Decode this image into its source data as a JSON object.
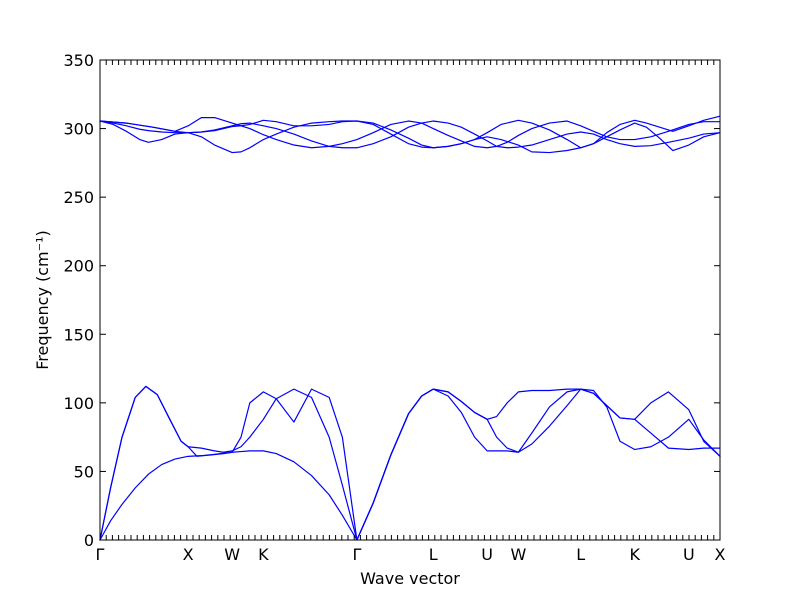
{
  "chart_data": {
    "type": "line",
    "xlabel": "Wave vector",
    "ylabel": "Frequency (cm⁻¹)",
    "ylim": [
      0,
      350
    ],
    "y_ticks": [
      0,
      50,
      100,
      150,
      200,
      250,
      300,
      350
    ],
    "x_ticks": [
      {
        "label": "Γ",
        "x": 0.0
      },
      {
        "label": "X",
        "x": 1.0
      },
      {
        "label": "W",
        "x": 1.5
      },
      {
        "label": "K",
        "x": 1.854
      },
      {
        "label": "Γ",
        "x": 2.915
      },
      {
        "label": "L",
        "x": 3.781
      },
      {
        "label": "U",
        "x": 4.393
      },
      {
        "label": "W",
        "x": 4.747
      },
      {
        "label": "L",
        "x": 5.454
      },
      {
        "label": "K",
        "x": 6.067
      },
      {
        "label": "U",
        "x": 6.681
      },
      {
        "label": "X",
        "x": 7.035
      }
    ],
    "xlim": [
      0,
      7.035
    ],
    "line_color": "#0000ff",
    "grid": false,
    "series": [
      {
        "x": [
          0,
          0.12,
          0.25,
          0.4,
          0.55,
          0.7,
          0.85,
          1.0,
          1.15,
          1.3,
          1.5,
          1.6,
          1.7,
          1.854,
          2.0,
          2.2,
          2.4,
          2.6,
          2.75,
          2.915,
          3.1,
          3.3,
          3.5,
          3.65,
          3.781,
          3.95,
          4.1,
          4.25,
          4.393,
          4.5,
          4.62,
          4.747,
          4.9,
          5.1,
          5.3,
          5.454,
          5.6,
          5.75,
          5.9,
          6.067,
          6.25,
          6.45,
          6.681,
          6.85,
          7.035
        ],
        "values": [
          0,
          14,
          26,
          38,
          48,
          55,
          59,
          61,
          61.5,
          62.5,
          64,
          64.5,
          65,
          65,
          63,
          57,
          47,
          33,
          18,
          0,
          27,
          62,
          92,
          105,
          110,
          108,
          101,
          93,
          88,
          75,
          67,
          64,
          78,
          97,
          108,
          110,
          107,
          98,
          89,
          88,
          78,
          67,
          66,
          67,
          67
        ]
      },
      {
        "x": [
          0,
          0.12,
          0.25,
          0.4,
          0.52,
          0.65,
          0.8,
          0.92,
          1.0,
          1.15,
          1.3,
          1.4,
          1.5,
          1.6,
          1.7,
          1.854,
          2.0,
          2.2,
          2.4,
          2.6,
          2.75,
          2.915,
          3.1,
          3.3,
          3.5,
          3.65,
          3.781,
          3.95,
          4.1,
          4.25,
          4.393,
          4.5,
          4.62,
          4.747,
          4.9,
          5.1,
          5.3,
          5.454,
          5.6,
          5.75,
          5.9,
          6.067,
          6.25,
          6.45,
          6.681,
          6.85,
          7.035
        ],
        "values": [
          0,
          38,
          75,
          104,
          112,
          106,
          87,
          72,
          68,
          67,
          65,
          64,
          65,
          68,
          75,
          88,
          103,
          110,
          104,
          75,
          40,
          0,
          27,
          62,
          92,
          105,
          110,
          105,
          93,
          75,
          65,
          65,
          65,
          64,
          70,
          83,
          98,
          110,
          109,
          97,
          72,
          66,
          68,
          75,
          88,
          73,
          61
        ]
      },
      {
        "x": [
          0,
          0.12,
          0.25,
          0.4,
          0.52,
          0.65,
          0.8,
          0.92,
          1.0,
          1.1,
          1.25,
          1.4,
          1.5,
          1.6,
          1.7,
          1.854,
          2.0,
          2.2,
          2.4,
          2.6,
          2.75,
          2.915,
          3.1,
          3.3,
          3.5,
          3.65,
          3.781,
          3.95,
          4.1,
          4.25,
          4.393,
          4.5,
          4.62,
          4.747,
          4.9,
          5.1,
          5.3,
          5.454,
          5.6,
          5.75,
          5.9,
          6.067,
          6.25,
          6.45,
          6.681,
          6.85,
          7.035
        ],
        "values": [
          0,
          38,
          75,
          104,
          112,
          106,
          87,
          72,
          68,
          61,
          62,
          63,
          64,
          75,
          100,
          108,
          103,
          86,
          110,
          104,
          75,
          0,
          27,
          62,
          92,
          105,
          110,
          108,
          101,
          93,
          88,
          90,
          100,
          108,
          109,
          109,
          110,
          110,
          107,
          98,
          89,
          88,
          100,
          108,
          95,
          72,
          61
        ]
      },
      {
        "x": [
          0,
          0.15,
          0.3,
          0.45,
          0.55,
          0.7,
          0.85,
          1.0,
          1.15,
          1.3,
          1.5,
          1.6,
          1.7,
          1.854,
          2.0,
          2.2,
          2.4,
          2.6,
          2.75,
          2.915,
          3.1,
          3.3,
          3.5,
          3.65,
          3.781,
          3.95,
          4.1,
          4.25,
          4.393,
          4.5,
          4.62,
          4.747,
          4.9,
          5.1,
          5.3,
          5.454,
          5.6,
          5.75,
          5.9,
          6.067,
          6.25,
          6.45,
          6.681,
          6.85,
          7.035
        ],
        "values": [
          305.5,
          304,
          302,
          299.5,
          298.5,
          297.5,
          297,
          297,
          297.5,
          299,
          302,
          303.5,
          304,
          302,
          300,
          296,
          291,
          287,
          286,
          286,
          289,
          294,
          301,
          304,
          305.5,
          304,
          301,
          296,
          291,
          287,
          286,
          286.5,
          288,
          292,
          296,
          297.5,
          296,
          292,
          289,
          287,
          287.5,
          290,
          293,
          296,
          297
        ]
      },
      {
        "x": [
          0,
          0.15,
          0.3,
          0.45,
          0.55,
          0.7,
          0.85,
          1.0,
          1.15,
          1.3,
          1.5,
          1.6,
          1.7,
          1.854,
          2.0,
          2.2,
          2.4,
          2.6,
          2.75,
          2.915,
          3.1,
          3.3,
          3.5,
          3.65,
          3.781,
          3.95,
          4.1,
          4.25,
          4.393,
          4.5,
          4.62,
          4.747,
          4.9,
          5.1,
          5.3,
          5.454,
          5.6,
          5.75,
          5.9,
          6.067,
          6.25,
          6.45,
          6.681,
          6.85,
          7.035
        ],
        "values": [
          305.5,
          303,
          298,
          292,
          290,
          292,
          296,
          297,
          297.5,
          298.5,
          301.5,
          302,
          300,
          295.5,
          292,
          288,
          286,
          287,
          289,
          292,
          297,
          303,
          305.5,
          304,
          300,
          295,
          291,
          287,
          286,
          287,
          290,
          295,
          300,
          304,
          305.5,
          302,
          298,
          294,
          292,
          292,
          294,
          298,
          303,
          305,
          305
        ]
      },
      {
        "x": [
          0,
          0.3,
          0.6,
          0.85,
          1.0,
          1.15,
          1.3,
          1.5,
          1.6,
          1.7,
          1.854,
          2.0,
          2.2,
          2.4,
          2.6,
          2.75,
          2.915,
          3.1,
          3.3,
          3.5,
          3.65,
          3.781,
          3.95,
          4.1,
          4.25,
          4.393,
          4.55,
          4.747,
          4.9,
          5.1,
          5.3,
          5.454,
          5.6,
          5.75,
          5.9,
          6.067,
          6.2,
          6.35,
          6.5,
          6.681,
          6.85,
          7.035
        ],
        "values": [
          305.5,
          304,
          301,
          298,
          302,
          308,
          308,
          304,
          302,
          303,
          306,
          305,
          302,
          302,
          303,
          305,
          305.5,
          304,
          299,
          293,
          288,
          286,
          287,
          289,
          292,
          297,
          303,
          306,
          304,
          299,
          292,
          286,
          289,
          297,
          303,
          306,
          304,
          301,
          298,
          302,
          306,
          309
        ]
      },
      {
        "x": [
          0,
          0.3,
          0.6,
          0.85,
          1.0,
          1.15,
          1.3,
          1.5,
          1.6,
          1.7,
          1.854,
          2.0,
          2.2,
          2.4,
          2.6,
          2.75,
          2.915,
          3.1,
          3.3,
          3.5,
          3.65,
          3.781,
          3.95,
          4.1,
          4.25,
          4.393,
          4.55,
          4.747,
          4.9,
          5.1,
          5.3,
          5.454,
          5.6,
          5.75,
          5.9,
          6.067,
          6.2,
          6.35,
          6.5,
          6.681,
          6.85,
          7.035
        ],
        "values": [
          305.5,
          304,
          301,
          298,
          297,
          294,
          288,
          282.5,
          283,
          286,
          292,
          296,
          301,
          304,
          305,
          305.5,
          305.5,
          303,
          296,
          289,
          286.5,
          286,
          287,
          289,
          292,
          294,
          292,
          288,
          283,
          282.5,
          284,
          286,
          289,
          294,
          299,
          304,
          301,
          293,
          284,
          288,
          294,
          297
        ]
      }
    ]
  }
}
